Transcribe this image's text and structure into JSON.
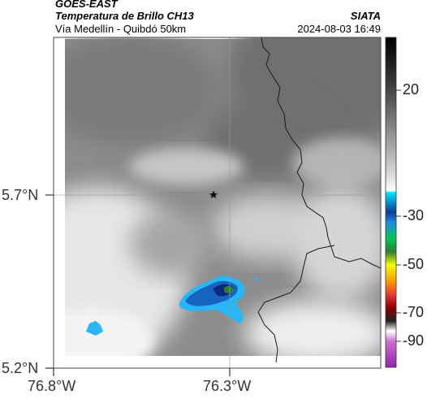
{
  "header": {
    "satellite": "GOES-EAST",
    "product": "Temperatura de Brillo CH13",
    "region": "Vía Medellín - Quibdó 50km",
    "organization": "SIATA",
    "datetime": "2024-08-03 16:49"
  },
  "map": {
    "lat_ticks": [
      "5.7°N",
      "5.2°N"
    ],
    "lon_ticks": [
      "76.8°W",
      "76.3°W"
    ],
    "marker_icon": "star-icon",
    "colors": {
      "cold_cloud_blue": "#1565c0",
      "deep_blue": "#0d2a80",
      "green": "#2e7d32",
      "cyan": "#29b6f6",
      "boundary": "#1a1a1a"
    }
  },
  "colorbar": {
    "labels": [
      "20",
      "-30",
      "-50",
      "-70",
      "-90"
    ]
  }
}
